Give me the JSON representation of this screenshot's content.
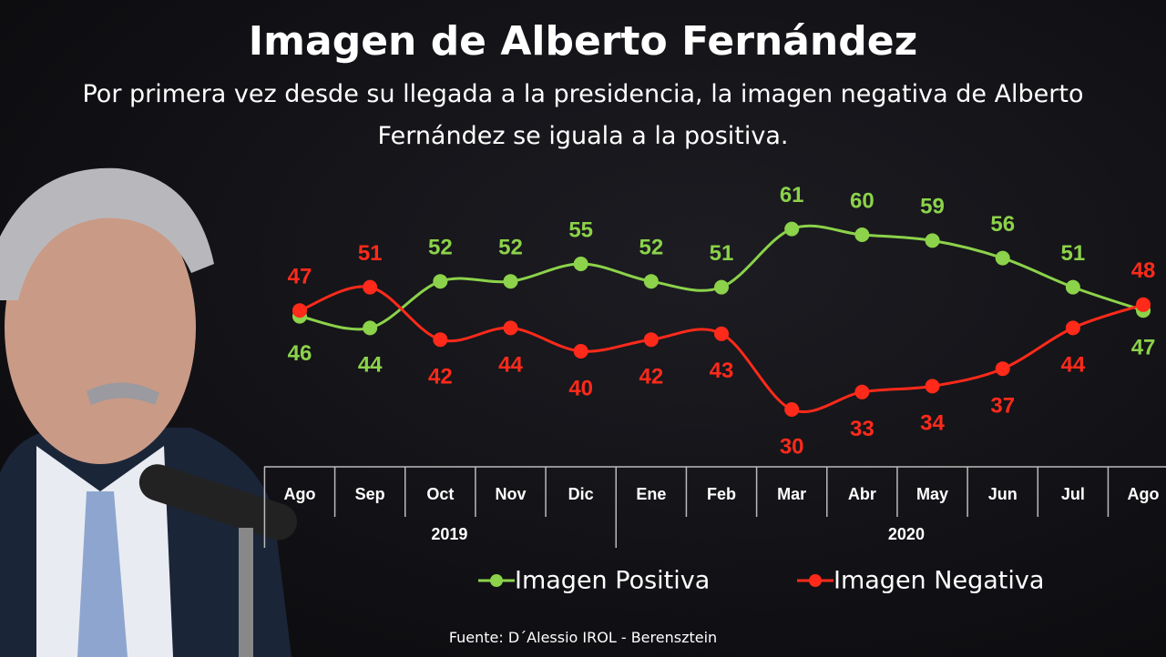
{
  "chart_data": {
    "type": "line",
    "title": "Imagen de Alberto Fernández",
    "subtitle": "Por primera vez desde su llegada a la presidencia, la imagen negativa de Alberto Fernández se iguala a la positiva.",
    "categories": [
      "Ago",
      "Sep",
      "Oct",
      "Nov",
      "Dic",
      "Ene",
      "Feb",
      "Mar",
      "Abr",
      "May",
      "Jun",
      "Jul",
      "Ago"
    ],
    "year_labels": [
      "2019",
      "2020"
    ],
    "series": [
      {
        "name": "Imagen Positiva",
        "color": "#8cd24a",
        "values": [
          46,
          44,
          52,
          52,
          55,
          52,
          51,
          61,
          60,
          59,
          56,
          51,
          47
        ]
      },
      {
        "name": "Imagen Negativa",
        "color": "#ff2a1a",
        "values": [
          47,
          51,
          42,
          44,
          40,
          42,
          43,
          30,
          33,
          34,
          37,
          44,
          48
        ]
      }
    ],
    "source": "Fuente: D´Alessio IROL - Berensztein"
  }
}
